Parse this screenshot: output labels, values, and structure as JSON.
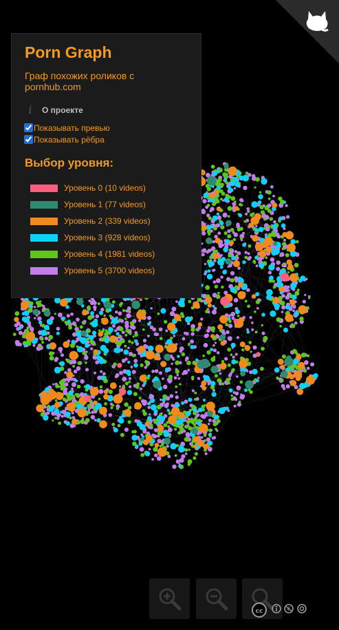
{
  "app": {
    "title": "Porn Graph",
    "subtitle": "Граф похожих роликов с pornhub.com",
    "accent_color": "#f39b1e",
    "background_color": "#000000"
  },
  "about": {
    "label": "О проекте",
    "icon": "info-icon"
  },
  "options": {
    "show_previews": {
      "label": "Показывать превью",
      "checked": true
    },
    "show_edges": {
      "label": "Показывать рёбра",
      "checked": true
    }
  },
  "levels": {
    "heading": "Выбор уровня:",
    "items": [
      {
        "label": "Уровень 0 (10 videos)",
        "color": "#ff5e7e"
      },
      {
        "label": "Уровень 1 (77 videos)",
        "color": "#2e8b72"
      },
      {
        "label": "Уровень 2 (339 videos)",
        "color": "#f08a1c"
      },
      {
        "label": "Уровень 3 (928 videos)",
        "color": "#0fd0f7"
      },
      {
        "label": "Уровень 4 (1981 videos)",
        "color": "#5cc61a"
      },
      {
        "label": "Уровень 5 (3700 videos)",
        "color": "#c17de8"
      }
    ]
  },
  "controls": {
    "zoom_in": "zoom-in-icon",
    "zoom_out": "zoom-out-icon",
    "zoom_reset": "zoom-reset-icon",
    "license_icons": [
      "cc-icon",
      "by-icon",
      "nc-icon",
      "sa-icon"
    ]
  },
  "corner_icon": "github-octocat-icon"
}
